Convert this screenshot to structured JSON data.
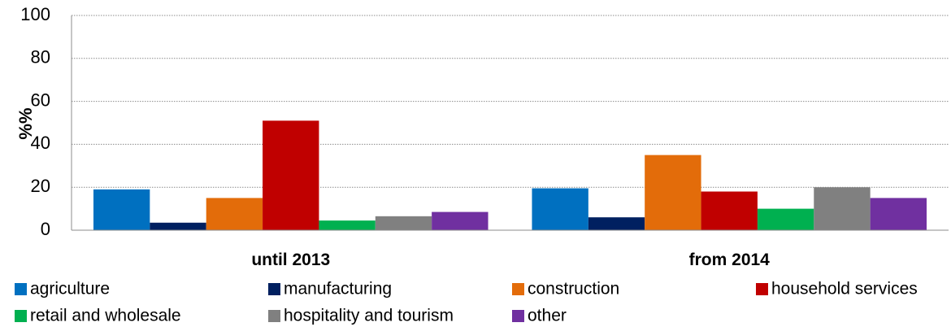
{
  "chart_data": {
    "type": "bar",
    "categories": [
      "until 2013",
      "from 2014"
    ],
    "series": [
      {
        "name": "agriculture",
        "color": "#0070C0",
        "values": [
          19,
          19.5
        ]
      },
      {
        "name": "manufacturing",
        "color": "#002060",
        "values": [
          3.5,
          6
        ]
      },
      {
        "name": "construction",
        "color": "#E36C0A",
        "values": [
          15,
          35
        ]
      },
      {
        "name": "household services",
        "color": "#C00000",
        "values": [
          51,
          18
        ]
      },
      {
        "name": "retail and wholesale",
        "color": "#00B050",
        "values": [
          4.5,
          10
        ]
      },
      {
        "name": "hospitality and tourism",
        "color": "#808080",
        "values": [
          6.5,
          20
        ]
      },
      {
        "name": "other",
        "color": "#7030A0",
        "values": [
          8.5,
          15
        ]
      }
    ],
    "ylabel": "%%",
    "ylim": [
      0,
      100
    ],
    "yticks": [
      0,
      20,
      40,
      60,
      80,
      100
    ],
    "grid": true,
    "legend": "bottom"
  }
}
